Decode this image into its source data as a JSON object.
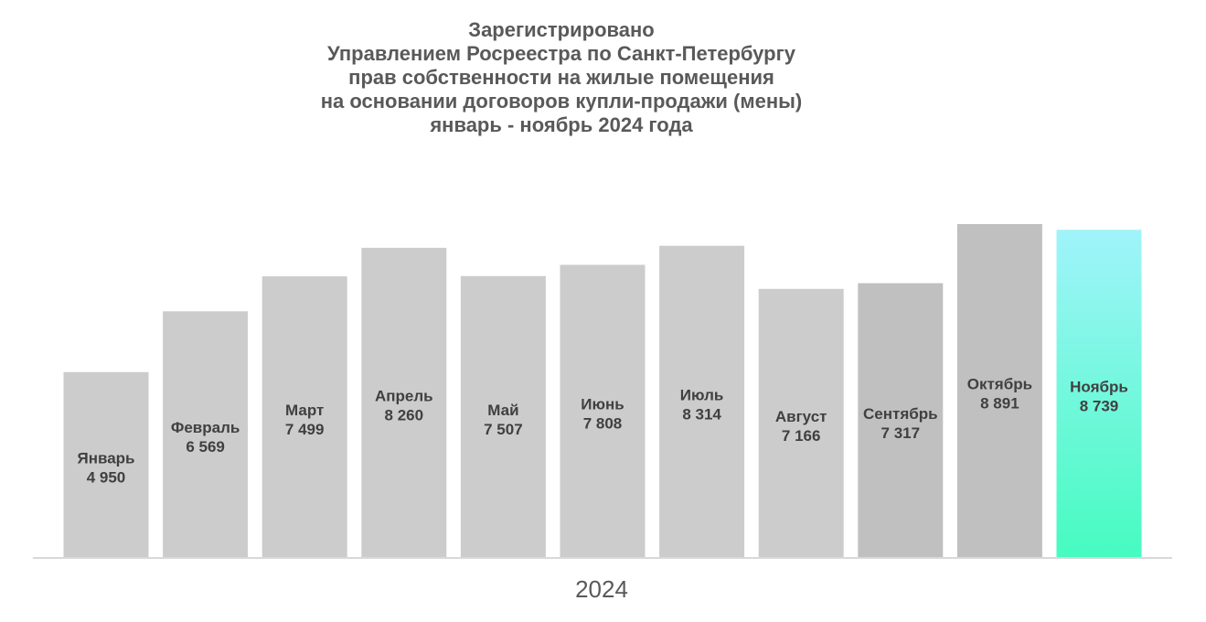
{
  "chart_data": {
    "type": "bar",
    "title": [
      "Зарегистрировано",
      "Управлением Росреестра по Санкт-Петербургу",
      "прав собственности на жилые помещения",
      "на основании договоров купли-продажи (мены)",
      "январь - ноябрь 2024 года"
    ],
    "categories": [
      "Январь",
      "Февраль",
      "Март",
      "Апрель",
      "Май",
      "Июнь",
      "Июль",
      "Август",
      "Сентябрь",
      "Октябрь",
      "Ноябрь"
    ],
    "values": [
      4950,
      6569,
      7499,
      8260,
      7507,
      7808,
      8314,
      7166,
      7317,
      8891,
      8739
    ],
    "value_labels": [
      "4 950",
      "6 569",
      "7 499",
      "8 260",
      "7 507",
      "7 808",
      "8 314",
      "7 166",
      "7 317",
      "8 891",
      "8 739"
    ],
    "xlabel": "2024",
    "ylabel": "",
    "ylim": [
      0,
      8891
    ],
    "grid": false,
    "legend": "none",
    "colors": {
      "default": "#cccccc",
      "darker": "#c0c0c0",
      "highlight_top": "#a0f4fa",
      "highlight_bottom": "#46fbc0",
      "axis": "#d9d9d9",
      "text": "#404040",
      "title": "#595959"
    },
    "darker_bars": [
      8,
      9
    ],
    "highlight_bar": 10
  }
}
